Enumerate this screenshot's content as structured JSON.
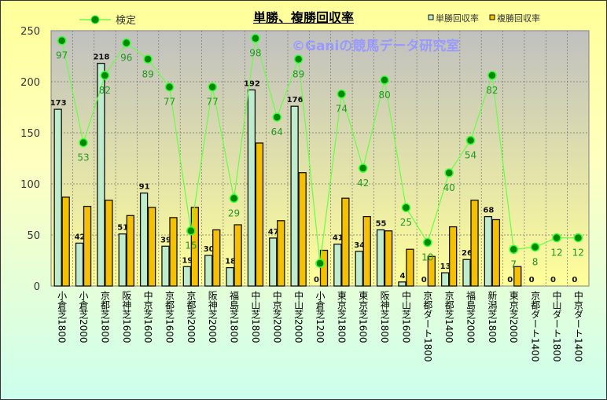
{
  "chart_data": {
    "type": "bar",
    "title": "単勝、複勝回収率",
    "watermark": "©Ganiの競馬データ研究室",
    "categories": [
      "小倉芝1800",
      "小倉芝2000",
      "京都芝1800",
      "阪神芝1600",
      "中京芝1600",
      "京都芝1600",
      "京都芝2000",
      "阪神芝2000",
      "福島芝1800",
      "中山芝1800",
      "中京芝2000",
      "中山芝2000",
      "小倉芝1200",
      "東京芝1800",
      "東京芝1600",
      "阪神芝1800",
      "中山芝1600",
      "京都ダート1800",
      "京都芝1400",
      "福島芝2000",
      "新潟芝1800",
      "東京芝2000",
      "京都ダート1400",
      "中山ダート1800",
      "中京ダート1400"
    ],
    "series": [
      {
        "name": "単勝回収率",
        "type": "bar",
        "color": "#bfeccc",
        "values": [
          173,
          42,
          218,
          51,
          91,
          39,
          19,
          30,
          18,
          192,
          47,
          176,
          0,
          41,
          34,
          55,
          4,
          0,
          13,
          26,
          68,
          0,
          0,
          0,
          0
        ],
        "labels": true
      },
      {
        "name": "複勝回収率",
        "type": "bar",
        "color": "#f5c000",
        "values": [
          87,
          78,
          84,
          69,
          77,
          67,
          77,
          55,
          60,
          140,
          64,
          111,
          35,
          86,
          68,
          54,
          36,
          29,
          58,
          84,
          65,
          19,
          0,
          0,
          0
        ],
        "labels": false
      },
      {
        "name": "検定",
        "type": "line",
        "axis": "secondary",
        "color": "#66ff44",
        "marker_color": "#008800",
        "values": [
          97,
          53,
          82,
          96,
          89,
          77,
          15,
          77,
          29,
          98,
          64,
          89,
          1,
          74,
          42,
          80,
          25,
          10,
          40,
          54,
          82,
          7,
          8,
          12,
          12
        ],
        "labels": true
      }
    ],
    "ylim": [
      0,
      250
    ],
    "yticks": [
      "0",
      "50",
      "100",
      "150",
      "200",
      "250"
    ],
    "y2lim": [
      -8.8,
      101.3
    ],
    "grid": true,
    "legend": "top"
  }
}
